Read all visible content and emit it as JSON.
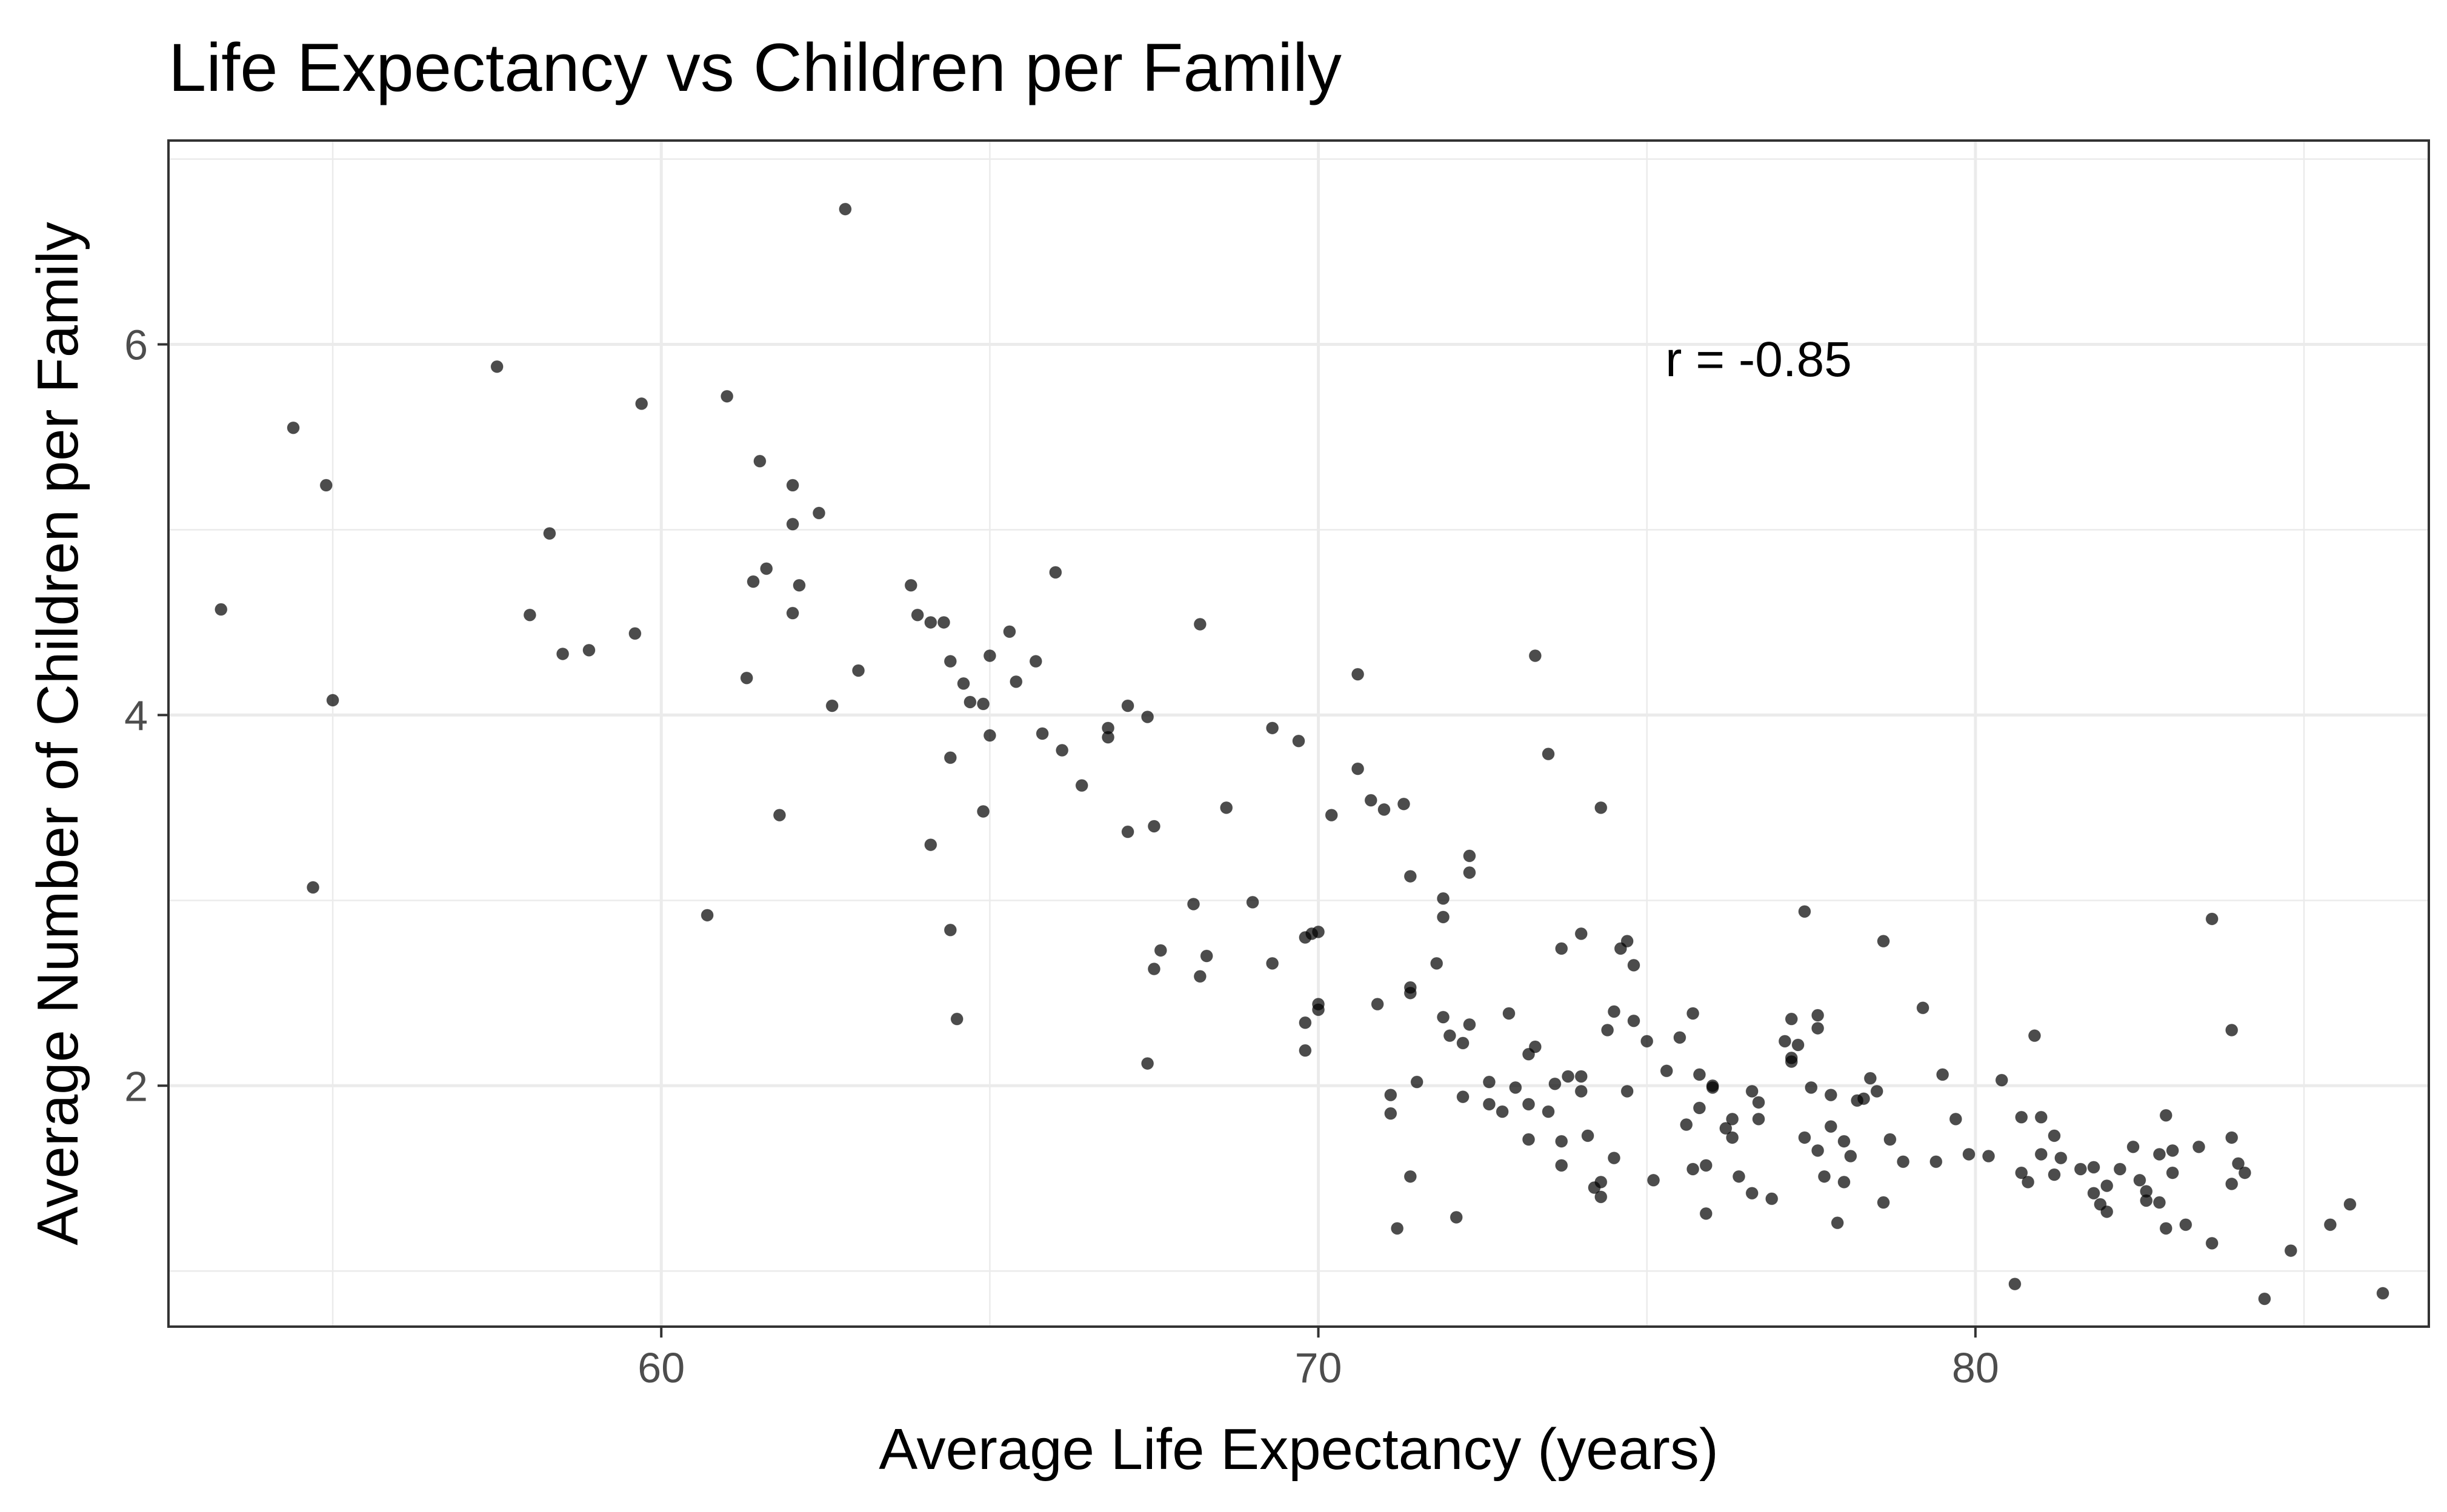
{
  "chart_data": {
    "type": "scatter",
    "title": "Life Expectancy vs Children per Family",
    "xlabel": "Average Life Expectancy (years)",
    "ylabel": "Average Number of Children per Family",
    "xlim": [
      52.5,
      86.9
    ],
    "ylim": [
      0.7,
      7.1
    ],
    "x_ticks": [
      60,
      70,
      80
    ],
    "y_ticks": [
      2,
      4,
      6
    ],
    "x_tick_labels": [
      "60",
      "70",
      "80"
    ],
    "y_tick_labels": [
      "2",
      "4",
      "6"
    ],
    "grid": true,
    "theme": "bw",
    "point_color": "#000000",
    "point_alpha": 0.7,
    "annotation": {
      "text": "r =  -0.85",
      "x": 76.7,
      "y": 5.92
    },
    "points": [
      [
        53.3,
        4.57
      ],
      [
        54.4,
        5.55
      ],
      [
        54.9,
        5.24
      ],
      [
        55.0,
        4.08
      ],
      [
        54.7,
        3.07
      ],
      [
        57.5,
        5.88
      ],
      [
        58.0,
        4.54
      ],
      [
        58.3,
        4.98
      ],
      [
        58.5,
        4.33
      ],
      [
        58.9,
        4.35
      ],
      [
        59.6,
        4.44
      ],
      [
        59.7,
        5.68
      ],
      [
        60.7,
        2.92
      ],
      [
        61.0,
        5.72
      ],
      [
        61.3,
        4.2
      ],
      [
        61.4,
        4.72
      ],
      [
        61.5,
        5.37
      ],
      [
        61.6,
        4.79
      ],
      [
        61.8,
        3.46
      ],
      [
        62.0,
        5.24
      ],
      [
        62.0,
        5.03
      ],
      [
        62.0,
        4.55
      ],
      [
        62.1,
        4.7
      ],
      [
        62.4,
        5.09
      ],
      [
        62.6,
        4.05
      ],
      [
        62.8,
        6.73
      ],
      [
        63.0,
        4.24
      ],
      [
        63.8,
        4.7
      ],
      [
        63.9,
        4.54
      ],
      [
        64.1,
        4.5
      ],
      [
        64.1,
        3.3
      ],
      [
        64.3,
        4.5
      ],
      [
        64.4,
        4.29
      ],
      [
        64.4,
        3.77
      ],
      [
        64.4,
        2.84
      ],
      [
        64.5,
        2.36
      ],
      [
        64.6,
        4.17
      ],
      [
        64.7,
        4.07
      ],
      [
        64.9,
        4.06
      ],
      [
        64.9,
        3.48
      ],
      [
        65.0,
        4.32
      ],
      [
        65.0,
        3.89
      ],
      [
        65.3,
        4.45
      ],
      [
        65.4,
        4.18
      ],
      [
        65.7,
        4.29
      ],
      [
        65.8,
        3.9
      ],
      [
        66.0,
        4.77
      ],
      [
        66.1,
        3.81
      ],
      [
        66.4,
        3.62
      ],
      [
        66.8,
        3.93
      ],
      [
        66.8,
        3.88
      ],
      [
        67.1,
        4.05
      ],
      [
        67.1,
        3.37
      ],
      [
        67.4,
        3.99
      ],
      [
        67.4,
        2.12
      ],
      [
        67.5,
        3.4
      ],
      [
        67.5,
        2.63
      ],
      [
        67.6,
        2.73
      ],
      [
        68.1,
        2.98
      ],
      [
        68.2,
        4.49
      ],
      [
        68.2,
        2.59
      ],
      [
        68.3,
        2.7
      ],
      [
        68.6,
        3.5
      ],
      [
        69.0,
        2.99
      ],
      [
        69.3,
        3.93
      ],
      [
        69.3,
        2.66
      ],
      [
        69.7,
        3.86
      ],
      [
        69.8,
        2.8
      ],
      [
        69.8,
        2.34
      ],
      [
        69.8,
        2.19
      ],
      [
        69.9,
        2.82
      ],
      [
        70.0,
        2.83
      ],
      [
        70.0,
        2.44
      ],
      [
        70.0,
        2.41
      ],
      [
        70.2,
        3.46
      ],
      [
        70.6,
        4.22
      ],
      [
        70.6,
        3.71
      ],
      [
        70.8,
        3.54
      ],
      [
        70.9,
        2.44
      ],
      [
        71.0,
        3.49
      ],
      [
        71.1,
        1.85
      ],
      [
        71.1,
        1.95
      ],
      [
        71.2,
        1.23
      ],
      [
        71.3,
        3.52
      ],
      [
        71.4,
        3.13
      ],
      [
        71.4,
        2.53
      ],
      [
        71.4,
        2.5
      ],
      [
        71.4,
        1.51
      ],
      [
        71.5,
        2.02
      ],
      [
        71.8,
        2.66
      ],
      [
        71.9,
        3.01
      ],
      [
        71.9,
        2.91
      ],
      [
        71.9,
        2.37
      ],
      [
        72.0,
        2.27
      ],
      [
        72.1,
        1.29
      ],
      [
        72.2,
        2.23
      ],
      [
        72.2,
        1.94
      ],
      [
        72.3,
        3.24
      ],
      [
        72.3,
        3.15
      ],
      [
        72.3,
        2.33
      ],
      [
        72.6,
        2.02
      ],
      [
        72.6,
        1.9
      ],
      [
        72.8,
        1.86
      ],
      [
        72.9,
        2.39
      ],
      [
        73.0,
        1.99
      ],
      [
        73.2,
        2.17
      ],
      [
        73.2,
        1.9
      ],
      [
        73.2,
        1.71
      ],
      [
        73.3,
        4.32
      ],
      [
        73.3,
        2.21
      ],
      [
        73.5,
        3.79
      ],
      [
        73.5,
        1.86
      ],
      [
        73.6,
        2.01
      ],
      [
        73.7,
        2.74
      ],
      [
        73.7,
        1.7
      ],
      [
        73.7,
        1.57
      ],
      [
        73.8,
        2.05
      ],
      [
        74.0,
        2.82
      ],
      [
        74.0,
        2.05
      ],
      [
        74.0,
        1.97
      ],
      [
        74.1,
        1.73
      ],
      [
        74.2,
        1.45
      ],
      [
        74.3,
        3.5
      ],
      [
        74.3,
        1.48
      ],
      [
        74.3,
        1.4
      ],
      [
        74.4,
        2.3
      ],
      [
        74.5,
        2.4
      ],
      [
        74.5,
        1.61
      ],
      [
        74.6,
        2.74
      ],
      [
        74.7,
        2.78
      ],
      [
        74.7,
        1.97
      ],
      [
        74.8,
        2.65
      ],
      [
        74.8,
        2.35
      ],
      [
        75.0,
        2.24
      ],
      [
        75.1,
        1.49
      ],
      [
        75.3,
        2.08
      ],
      [
        75.5,
        2.26
      ],
      [
        75.6,
        1.79
      ],
      [
        75.7,
        2.39
      ],
      [
        75.7,
        1.55
      ],
      [
        75.8,
        2.06
      ],
      [
        75.8,
        1.88
      ],
      [
        75.9,
        1.57
      ],
      [
        75.9,
        1.31
      ],
      [
        76.0,
        2.0
      ],
      [
        76.0,
        1.99
      ],
      [
        76.2,
        1.77
      ],
      [
        76.3,
        1.82
      ],
      [
        76.3,
        1.72
      ],
      [
        76.4,
        1.51
      ],
      [
        76.6,
        1.97
      ],
      [
        76.6,
        1.42
      ],
      [
        76.7,
        1.91
      ],
      [
        76.7,
        1.82
      ],
      [
        76.9,
        1.39
      ],
      [
        77.1,
        2.24
      ],
      [
        77.2,
        2.36
      ],
      [
        77.2,
        2.15
      ],
      [
        77.2,
        2.13
      ],
      [
        77.3,
        2.22
      ],
      [
        77.4,
        2.94
      ],
      [
        77.4,
        1.72
      ],
      [
        77.5,
        1.99
      ],
      [
        77.6,
        2.38
      ],
      [
        77.6,
        2.31
      ],
      [
        77.6,
        1.65
      ],
      [
        77.7,
        1.51
      ],
      [
        77.8,
        1.95
      ],
      [
        77.8,
        1.78
      ],
      [
        77.9,
        1.26
      ],
      [
        78.0,
        1.7
      ],
      [
        78.0,
        1.48
      ],
      [
        78.1,
        1.62
      ],
      [
        78.2,
        1.92
      ],
      [
        78.3,
        1.93
      ],
      [
        78.4,
        2.04
      ],
      [
        78.5,
        1.97
      ],
      [
        78.6,
        2.78
      ],
      [
        78.6,
        1.37
      ],
      [
        78.7,
        1.71
      ],
      [
        78.9,
        1.59
      ],
      [
        79.2,
        2.42
      ],
      [
        79.4,
        1.59
      ],
      [
        79.5,
        2.06
      ],
      [
        79.7,
        1.82
      ],
      [
        79.9,
        1.63
      ],
      [
        80.2,
        1.62
      ],
      [
        80.4,
        2.03
      ],
      [
        80.6,
        0.93
      ],
      [
        80.7,
        1.83
      ],
      [
        80.7,
        1.53
      ],
      [
        80.8,
        1.48
      ],
      [
        80.9,
        2.27
      ],
      [
        81.0,
        1.83
      ],
      [
        81.0,
        1.63
      ],
      [
        81.2,
        1.73
      ],
      [
        81.2,
        1.52
      ],
      [
        81.3,
        1.61
      ],
      [
        81.6,
        1.55
      ],
      [
        81.8,
        1.56
      ],
      [
        81.8,
        1.42
      ],
      [
        81.9,
        1.36
      ],
      [
        82.0,
        1.32
      ],
      [
        82.0,
        1.46
      ],
      [
        82.2,
        1.55
      ],
      [
        82.4,
        1.67
      ],
      [
        82.5,
        1.49
      ],
      [
        82.6,
        1.43
      ],
      [
        82.6,
        1.38
      ],
      [
        82.8,
        1.63
      ],
      [
        82.8,
        1.37
      ],
      [
        82.9,
        1.84
      ],
      [
        82.9,
        1.23
      ],
      [
        83.0,
        1.65
      ],
      [
        83.0,
        1.53
      ],
      [
        83.2,
        1.25
      ],
      [
        83.4,
        1.67
      ],
      [
        83.6,
        2.9
      ],
      [
        83.6,
        1.15
      ],
      [
        83.9,
        2.3
      ],
      [
        83.9,
        1.72
      ],
      [
        83.9,
        1.47
      ],
      [
        84.0,
        1.58
      ],
      [
        84.1,
        1.53
      ],
      [
        84.4,
        0.85
      ],
      [
        84.8,
        1.11
      ],
      [
        85.4,
        1.25
      ],
      [
        85.7,
        1.36
      ],
      [
        86.2,
        0.88
      ]
    ]
  }
}
